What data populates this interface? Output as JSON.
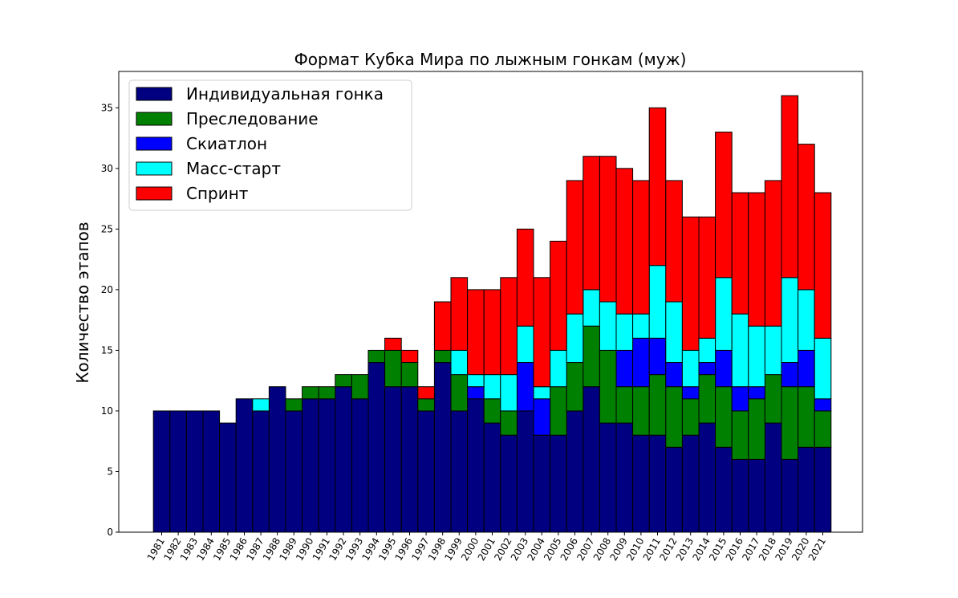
{
  "chart_data": {
    "type": "bar",
    "stacked": true,
    "title": "Формат Кубка Мира по лыжным гонкам (муж)",
    "xlabel": "",
    "ylabel": "Количество этапов",
    "ylim": [
      0,
      38
    ],
    "yticks": [
      0,
      5,
      10,
      15,
      20,
      25,
      30,
      35
    ],
    "grid": false,
    "legend_position": "top-left",
    "categories": [
      "1981",
      "1982",
      "1983",
      "1984",
      "1985",
      "1986",
      "1987",
      "1988",
      "1989",
      "1990",
      "1991",
      "1992",
      "1993",
      "1994",
      "1995",
      "1996",
      "1997",
      "1998",
      "1999",
      "2000",
      "2001",
      "2002",
      "2003",
      "2004",
      "2005",
      "2006",
      "2007",
      "2008",
      "2009",
      "2010",
      "2011",
      "2012",
      "2013",
      "2014",
      "2015",
      "2016",
      "2017",
      "2018",
      "2019",
      "2020",
      "2021"
    ],
    "series": [
      {
        "name": "Индивидуальная гонка",
        "color": "#000080",
        "values": [
          10,
          10,
          10,
          10,
          9,
          11,
          10,
          12,
          10,
          11,
          11,
          12,
          11,
          14,
          12,
          12,
          10,
          14,
          10,
          11,
          9,
          8,
          10,
          8,
          8,
          10,
          12,
          9,
          9,
          8,
          8,
          7,
          8,
          9,
          7,
          6,
          6,
          9,
          6,
          7,
          7
        ]
      },
      {
        "name": "Преследование",
        "color": "#008000",
        "values": [
          0,
          0,
          0,
          0,
          0,
          0,
          0,
          0,
          1,
          1,
          1,
          1,
          2,
          1,
          3,
          2,
          1,
          1,
          3,
          0,
          2,
          2,
          0,
          0,
          4,
          4,
          5,
          6,
          3,
          4,
          5,
          5,
          3,
          4,
          5,
          4,
          5,
          4,
          6,
          5,
          3
        ]
      },
      {
        "name": "Скиатлон",
        "color": "#0000ff",
        "values": [
          0,
          0,
          0,
          0,
          0,
          0,
          0,
          0,
          0,
          0,
          0,
          0,
          0,
          0,
          0,
          0,
          0,
          0,
          0,
          1,
          0,
          0,
          4,
          3,
          0,
          0,
          0,
          0,
          3,
          4,
          3,
          2,
          1,
          1,
          3,
          2,
          1,
          0,
          2,
          3,
          1
        ]
      },
      {
        "name": "Масс-старт",
        "color": "#00ffff",
        "values": [
          0,
          0,
          0,
          0,
          0,
          0,
          1,
          0,
          0,
          0,
          0,
          0,
          0,
          0,
          0,
          0,
          0,
          0,
          2,
          1,
          2,
          3,
          3,
          1,
          3,
          4,
          3,
          4,
          3,
          2,
          6,
          5,
          3,
          2,
          6,
          6,
          5,
          4,
          7,
          5,
          5
        ]
      },
      {
        "name": "Спринт",
        "color": "#ff0000",
        "values": [
          0,
          0,
          0,
          0,
          0,
          0,
          0,
          0,
          0,
          0,
          0,
          0,
          0,
          0,
          1,
          1,
          1,
          4,
          6,
          7,
          7,
          8,
          8,
          9,
          9,
          11,
          11,
          12,
          12,
          11,
          13,
          10,
          11,
          10,
          12,
          10,
          11,
          12,
          15,
          12,
          12
        ]
      }
    ]
  }
}
